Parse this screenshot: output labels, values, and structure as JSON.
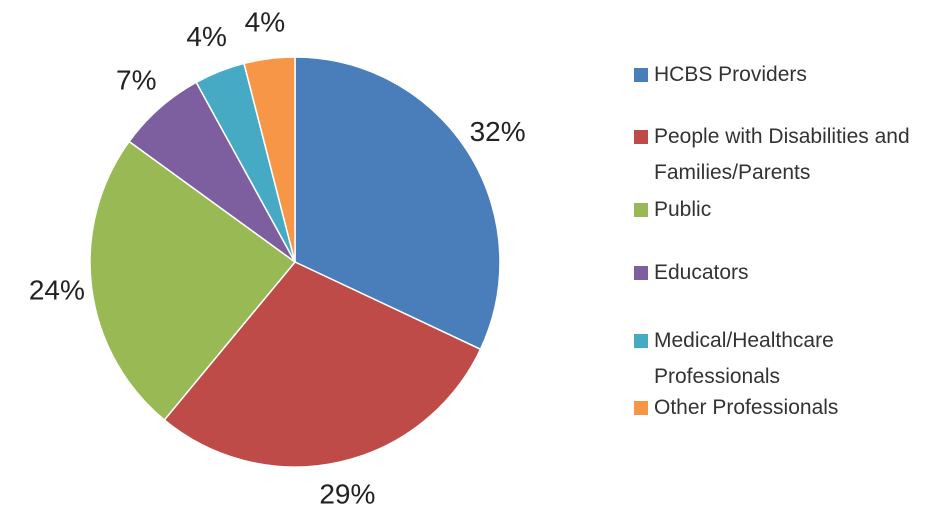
{
  "chart_data": {
    "type": "pie",
    "categories": [
      "HCBS Providers",
      "People with Disabilities and Families/Parents",
      "Public",
      "Educators",
      "Medical/Healthcare Professionals",
      "Other Professionals"
    ],
    "values": [
      32,
      29,
      24,
      7,
      4,
      4
    ],
    "value_labels": [
      "32%",
      "29%",
      "24%",
      "7%",
      "4%",
      "4%"
    ],
    "colors": [
      "#4a7ebb",
      "#be4b48",
      "#98b954",
      "#7d5fa0",
      "#46aac5",
      "#f79646"
    ],
    "legend": "right"
  }
}
